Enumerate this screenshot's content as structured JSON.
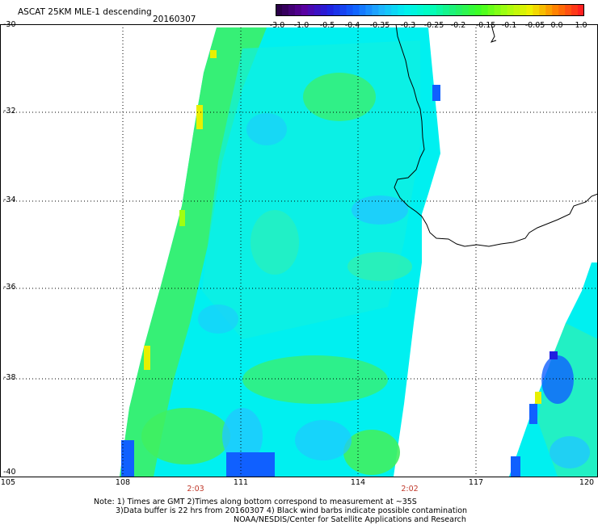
{
  "header": {
    "product_title": "ASCAT 25KM MLE-1 descending",
    "date": "20160307"
  },
  "colorbar": {
    "tick_labels": [
      "-3.0",
      "-1.0",
      "-0.5",
      "-0.4",
      "-0.35",
      "-0.3",
      "-0.25",
      "-0.2",
      "-0.15",
      "-0.1",
      "-0.05",
      "0.0",
      "1.0"
    ],
    "colors": [
      "#2a0048",
      "#5a00a0",
      "#2020e0",
      "#1060ff",
      "#20b0ff",
      "#00f0f0",
      "#00ffc0",
      "#20f070",
      "#40ff20",
      "#a0ff10",
      "#f0f000",
      "#ff8000",
      "#ff2020"
    ]
  },
  "map": {
    "lat_labels": [
      "-30",
      "-32",
      "-34",
      "-36",
      "-38",
      "-40"
    ],
    "lon_labels": [
      "105",
      "108",
      "111",
      "114",
      "117",
      "120"
    ],
    "time_labels": [
      "2:03",
      "2:02"
    ],
    "swath_colors": {
      "cyan": "#00f0f0",
      "aqua_green": "#30f0b0",
      "green": "#40f060",
      "light_blue": "#20c8ff",
      "blue": "#1060ff",
      "yellow": "#e8f000"
    },
    "coast_color": "#000000",
    "grid": true
  },
  "footer": {
    "note_line1": "Note: 1) Times are GMT 2)Times along bottom correspond to measurement at ~35S",
    "note_line2": "3)Data buffer is 22 hrs from 20160307 4) Black wind barbs indicate possible contamination",
    "note_line3": "NOAA/NESDIS/Center for Satellite Applications and Research"
  }
}
